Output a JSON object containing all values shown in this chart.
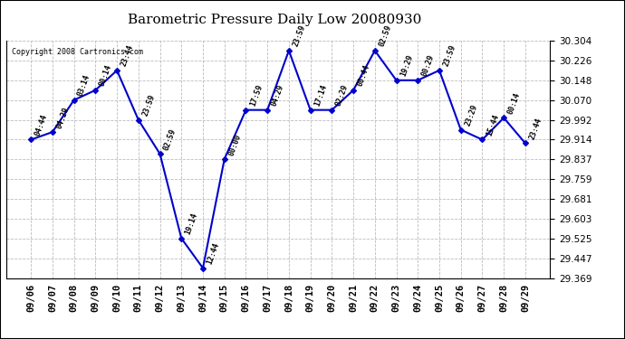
{
  "title": "Barometric Pressure Daily Low 20080930",
  "copyright": "Copyright 2008 Cartronics.com",
  "dates": [
    "09/06",
    "09/07",
    "09/08",
    "09/09",
    "09/10",
    "09/11",
    "09/12",
    "09/13",
    "09/14",
    "09/15",
    "09/16",
    "09/17",
    "09/18",
    "09/19",
    "09/20",
    "09/21",
    "09/22",
    "09/23",
    "09/24",
    "09/25",
    "09/26",
    "09/27",
    "09/28",
    "09/29"
  ],
  "values": [
    29.914,
    29.944,
    30.07,
    30.109,
    30.187,
    29.992,
    29.858,
    29.525,
    29.408,
    29.837,
    30.031,
    30.031,
    30.265,
    30.031,
    30.031,
    30.109,
    30.265,
    30.148,
    30.148,
    30.187,
    29.953,
    29.914,
    30.0,
    29.9
  ],
  "time_labels": [
    "04:44",
    "04:29",
    "03:14",
    "00:14",
    "23:44",
    "23:59",
    "02:59",
    "19:14",
    "12:44",
    "00:00",
    "17:59",
    "04:29",
    "23:59",
    "17:14",
    "02:29",
    "00:44",
    "02:59",
    "19:29",
    "00:29",
    "23:59",
    "23:29",
    "15:44",
    "00:14",
    "23:44"
  ],
  "ylim_min": 29.369,
  "ylim_max": 30.304,
  "yticks": [
    29.369,
    29.447,
    29.525,
    29.603,
    29.681,
    29.759,
    29.837,
    29.914,
    29.992,
    30.07,
    30.148,
    30.226,
    30.304
  ],
  "line_color": "#0000cc",
  "marker_color": "#0000cc",
  "bg_color": "#ffffff",
  "grid_color": "#bbbbbb",
  "title_fontsize": 11,
  "label_fontsize": 6.0,
  "tick_fontsize": 7.5,
  "copyright_fontsize": 6.0
}
